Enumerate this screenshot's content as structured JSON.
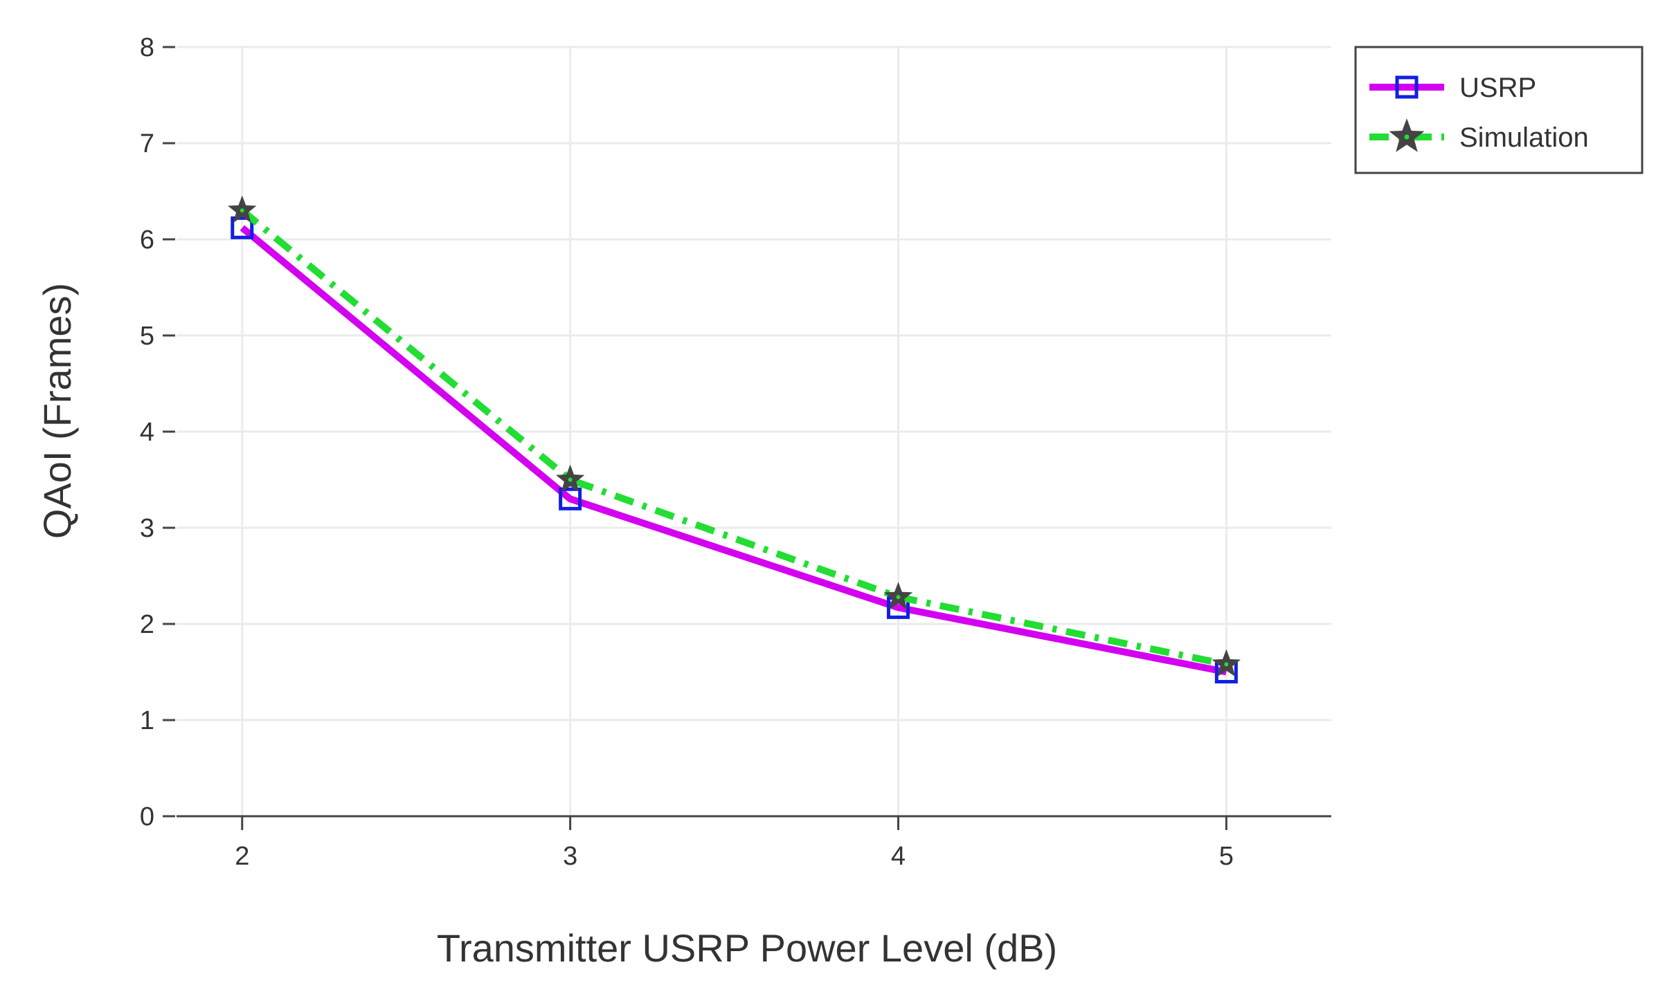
{
  "chart_data": {
    "type": "line",
    "title": "",
    "xlabel": "Transmitter USRP Power Level (dB)",
    "ylabel": "QAoI (Frames)",
    "x": [
      2,
      3,
      4,
      5
    ],
    "xticks": [
      "2",
      "3",
      "4",
      "5"
    ],
    "yticks": [
      "0",
      "1",
      "2",
      "3",
      "4",
      "5",
      "6",
      "7",
      "8"
    ],
    "xlim": [
      1.8,
      5.32
    ],
    "ylim": [
      0,
      8
    ],
    "grid": true,
    "legend_position": "top-right",
    "series": [
      {
        "name": "USRP",
        "values": [
          6.12,
          3.3,
          2.17,
          1.5
        ],
        "line_color": "#d400f0",
        "line_style": "solid",
        "marker": "square",
        "marker_color": "#1020e0"
      },
      {
        "name": "Simulation",
        "values": [
          6.3,
          3.5,
          2.28,
          1.58
        ],
        "line_color": "#22dd33",
        "line_style": "dashdot",
        "marker": "star",
        "marker_color": "#444444"
      }
    ]
  }
}
